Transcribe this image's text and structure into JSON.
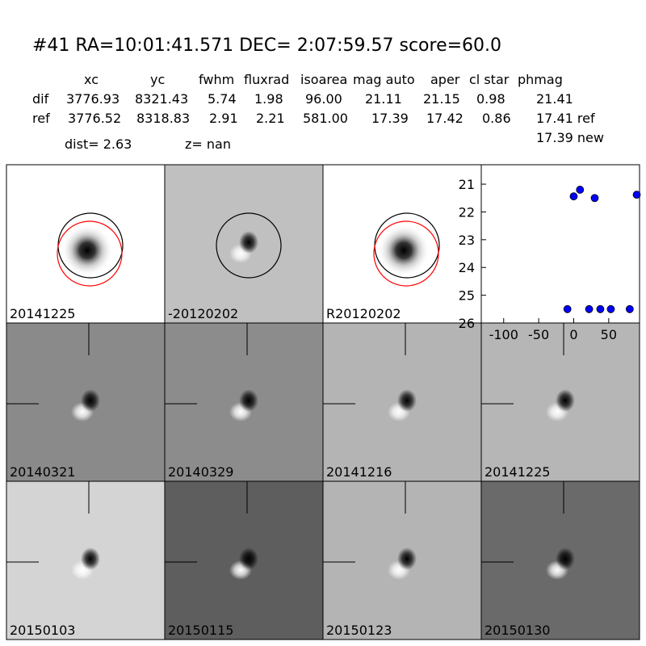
{
  "header": {
    "title": "#41   RA=10:01:41.571 DEC= 2:07:59.57      score=60.0"
  },
  "table": {
    "columns": [
      "xc",
      "yc",
      "fwhm",
      "fluxrad",
      "isoarea",
      "mag auto",
      "aper",
      "cl star",
      "phmag"
    ],
    "rows": [
      [
        "dif",
        "3776.93",
        "8321.43",
        "5.74",
        "1.98",
        "96.00",
        "21.11",
        "21.15",
        "0.98",
        "21.41"
      ],
      [
        "ref",
        "3776.52",
        "8318.83",
        "2.91",
        "2.21",
        "581.00",
        "17.39",
        "17.42",
        "0.86",
        "17.41 ref"
      ]
    ],
    "extra": "17.39 new"
  },
  "dist": "dist=  2.63",
  "z": "z=   nan",
  "panels": [
    {
      "label": "20141225",
      "background": "#ffffff",
      "kind": "star"
    },
    {
      "label": "-20120202",
      "background": "#c0c0c0",
      "kind": "dipole"
    },
    {
      "label": "R20120202",
      "background": "#ffffff",
      "kind": "star"
    },
    {
      "label": "20140321",
      "background": "#8a8a8a",
      "kind": "dipole"
    },
    {
      "label": "20140329",
      "background": "#8c8c8c",
      "kind": "dipole"
    },
    {
      "label": "20141216",
      "background": "#b4b4b4",
      "kind": "dipole"
    },
    {
      "label": "20141225",
      "background": "#b6b6b6",
      "kind": "dipole",
      "label_color": "#ff0000"
    },
    {
      "label": "20150103",
      "background": "#d4d4d4",
      "kind": "dipole"
    },
    {
      "label": "20150115",
      "background": "#5e5e5e",
      "kind": "dipole"
    },
    {
      "label": "20150123",
      "background": "#b4b4b4",
      "kind": "dipole"
    },
    {
      "label": "20150130",
      "background": "#6a6a6a",
      "kind": "dipole"
    }
  ],
  "chart_data": {
    "type": "scatter",
    "color": "#0000ff",
    "x": [
      0,
      9,
      30,
      90,
      -9,
      22,
      38,
      53,
      80
    ],
    "values": [
      21.44,
      21.2,
      21.5,
      21.38,
      25.5,
      25.5,
      25.5,
      25.5,
      25.5
    ],
    "xlim": [
      -132,
      94
    ],
    "ylim": [
      26,
      20.3
    ],
    "xticks": [
      -100,
      -50,
      0,
      50
    ],
    "yticks": [
      21,
      22,
      23,
      24,
      25,
      26
    ]
  }
}
